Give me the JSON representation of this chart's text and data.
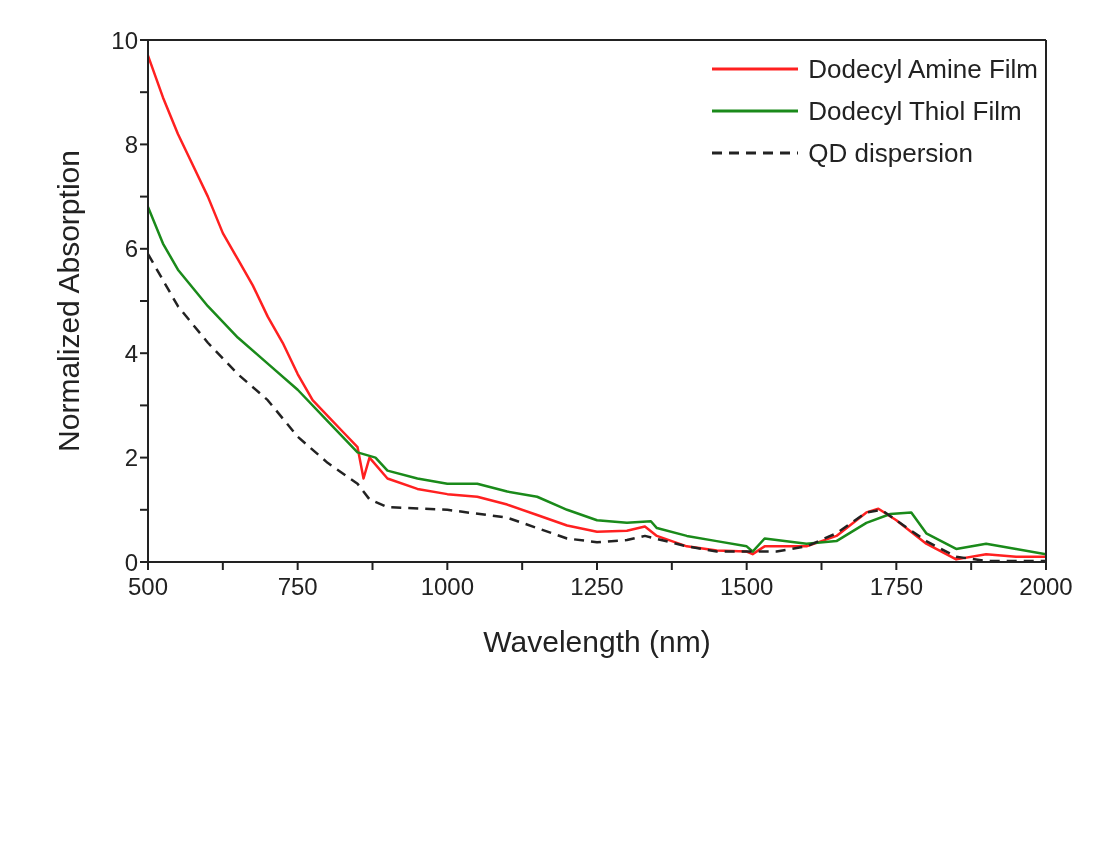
{
  "chart_data": {
    "type": "line",
    "xlabel": "Wavelength (nm)",
    "ylabel": "Normalized Absorption",
    "xlim": [
      500,
      2000
    ],
    "ylim": [
      0,
      10
    ],
    "xticks": [
      500,
      {
        "value": 625,
        "label": null
      },
      750,
      {
        "value": 875,
        "label": null
      },
      1000,
      {
        "value": 1125,
        "label": null
      },
      1250,
      {
        "value": 1375,
        "label": null
      },
      1500,
      {
        "value": 1625,
        "label": null
      },
      1750,
      {
        "value": 1875,
        "label": null
      },
      2000
    ],
    "yticks": [
      0,
      {
        "value": 1,
        "label": null
      },
      2,
      {
        "value": 3,
        "label": null
      },
      4,
      {
        "value": 5,
        "label": null
      },
      6,
      {
        "value": 7,
        "label": null
      },
      8,
      {
        "value": 9,
        "label": null
      },
      10
    ],
    "legend": "top right",
    "marker": "none",
    "series": [
      {
        "name": "Dodecyl Amine Film",
        "color": "#ff2020",
        "line_style": "solid",
        "x": [
          500,
          525,
          550,
          575,
          600,
          625,
          650,
          675,
          700,
          725,
          750,
          775,
          800,
          825,
          850,
          860,
          870,
          900,
          950,
          1000,
          1050,
          1100,
          1150,
          1200,
          1250,
          1300,
          1330,
          1350,
          1400,
          1450,
          1500,
          1510,
          1530,
          1600,
          1650,
          1700,
          1720,
          1750,
          1800,
          1850,
          1900,
          1950,
          2000
        ],
        "values": [
          9.7,
          8.9,
          8.2,
          7.6,
          7.0,
          6.3,
          5.8,
          5.3,
          4.7,
          4.2,
          3.6,
          3.1,
          2.8,
          2.5,
          2.2,
          1.6,
          2.0,
          1.6,
          1.4,
          1.3,
          1.25,
          1.1,
          0.9,
          0.7,
          0.58,
          0.6,
          0.68,
          0.5,
          0.3,
          0.22,
          0.2,
          0.15,
          0.3,
          0.3,
          0.5,
          0.95,
          1.02,
          0.8,
          0.35,
          0.05,
          0.15,
          0.1,
          0.1
        ]
      },
      {
        "name": "Dodecyl Thiol Film",
        "color": "#1a8a1a",
        "line_style": "solid",
        "x": [
          500,
          525,
          550,
          600,
          650,
          700,
          750,
          800,
          850,
          880,
          900,
          950,
          1000,
          1050,
          1100,
          1150,
          1200,
          1250,
          1300,
          1340,
          1350,
          1400,
          1450,
          1500,
          1510,
          1530,
          1600,
          1650,
          1700,
          1740,
          1775,
          1800,
          1850,
          1900,
          1950,
          2000
        ],
        "values": [
          6.8,
          6.1,
          5.6,
          4.9,
          4.3,
          3.8,
          3.3,
          2.7,
          2.1,
          2.0,
          1.75,
          1.6,
          1.5,
          1.5,
          1.35,
          1.25,
          1.0,
          0.8,
          0.75,
          0.78,
          0.65,
          0.5,
          0.4,
          0.3,
          0.2,
          0.45,
          0.35,
          0.4,
          0.75,
          0.92,
          0.95,
          0.55,
          0.25,
          0.35,
          0.25,
          0.15
        ]
      },
      {
        "name": "QD dispersion",
        "color": "#222222",
        "line_style": "dashed",
        "x": [
          500,
          550,
          600,
          650,
          700,
          750,
          800,
          850,
          870,
          900,
          1000,
          1100,
          1150,
          1200,
          1250,
          1300,
          1330,
          1400,
          1450,
          1500,
          1550,
          1600,
          1650,
          1700,
          1725,
          1750,
          1800,
          1850,
          1900,
          2000
        ],
        "values": [
          5.9,
          4.9,
          4.2,
          3.6,
          3.1,
          2.4,
          1.9,
          1.5,
          1.2,
          1.05,
          1.0,
          0.85,
          0.65,
          0.45,
          0.38,
          0.42,
          0.5,
          0.3,
          0.2,
          0.2,
          0.2,
          0.3,
          0.55,
          0.95,
          1.0,
          0.8,
          0.4,
          0.1,
          0.02,
          0.02
        ]
      }
    ]
  }
}
